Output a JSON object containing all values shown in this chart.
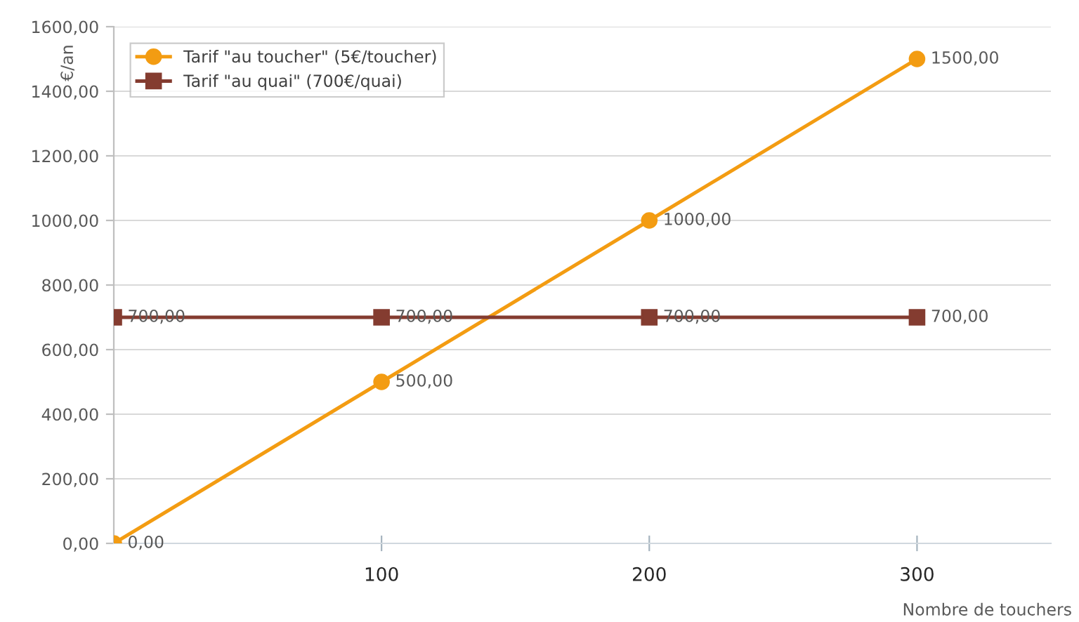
{
  "chart_data": {
    "type": "line",
    "xlabel": "Nombre de touchers",
    "ylabel": "€/an",
    "x": [
      0,
      100,
      200,
      300
    ],
    "series": [
      {
        "name": "Tarif \"au toucher\" (5€/toucher)",
        "color": "#f39c12",
        "marker": "circle",
        "values": [
          0,
          500,
          1000,
          1500
        ],
        "value_labels": [
          "0,00",
          "500,00",
          "1000,00",
          "1500,00"
        ]
      },
      {
        "name": "Tarif \"au quai\" (700€/quai)",
        "color": "#843c30",
        "marker": "square",
        "values": [
          700,
          700,
          700,
          700
        ],
        "value_labels": [
          "700,00",
          "700,00",
          "700,00",
          "700,00"
        ]
      }
    ],
    "xlim": [
      0,
      350
    ],
    "xticks": [
      100,
      200,
      300
    ],
    "ylim": [
      0,
      1600
    ],
    "yticks": [
      {
        "value": 0,
        "label": "0,00"
      },
      {
        "value": 200,
        "label": "200,00"
      },
      {
        "value": 400,
        "label": "400,00"
      },
      {
        "value": 600,
        "label": "600,00"
      },
      {
        "value": 800,
        "label": "800,00"
      },
      {
        "value": 1000,
        "label": "1000,00"
      },
      {
        "value": 1200,
        "label": "1200,00"
      },
      {
        "value": 1400,
        "label": "1400,00"
      },
      {
        "value": 1600,
        "label": "1600,00"
      }
    ],
    "grid": "y",
    "legend": "top left"
  }
}
